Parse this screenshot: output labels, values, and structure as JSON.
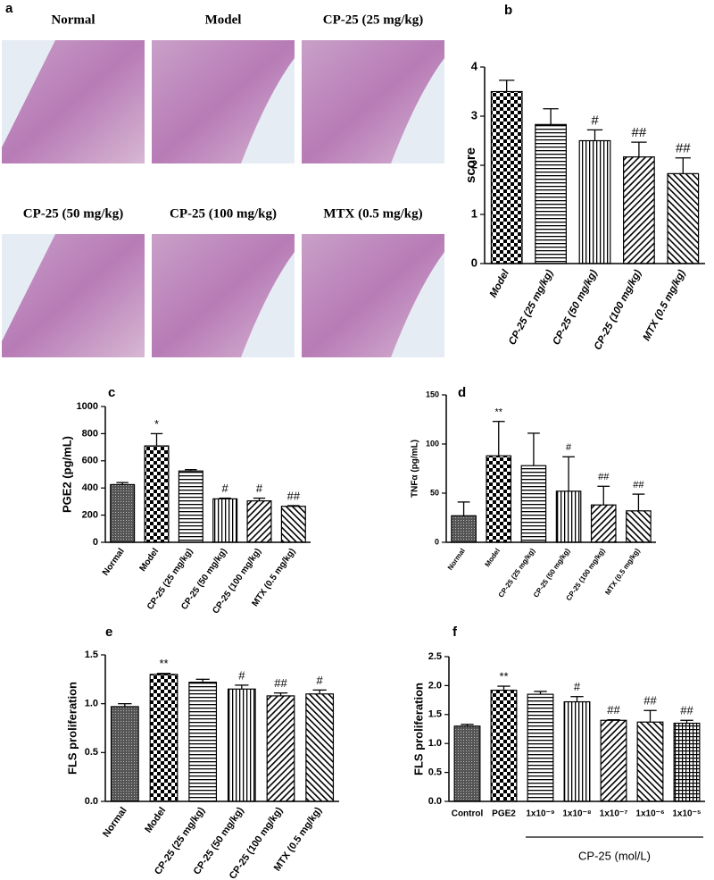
{
  "panel_a": {
    "panel": "a",
    "images": [
      "Normal",
      "Model",
      "CP-25 (25 mg/kg)",
      "CP-25 (50 mg/kg)",
      "CP-25 (100 mg/kg)",
      "MTX (0.5 mg/kg)"
    ]
  },
  "chart_data": [
    {
      "type": "bar",
      "panel": "b",
      "y_label": "score",
      "categories": [
        "Model",
        "CP-25 (25 mg/kg)",
        "CP-25 (50 mg/kg)",
        "CP-25 (100 mg/kg)",
        "MTX (0.5 mg/kg)"
      ],
      "values": [
        3.5,
        2.83,
        2.5,
        2.17,
        1.83
      ],
      "errors": [
        0.23,
        0.32,
        0.22,
        0.3,
        0.32
      ],
      "significance": [
        null,
        null,
        "#",
        "##",
        "##"
      ],
      "ylim": [
        0,
        4
      ],
      "yticks": [
        0,
        1,
        2,
        3,
        4
      ]
    },
    {
      "type": "bar",
      "panel": "c",
      "y_label": "PGE2 (pg/mL)",
      "categories": [
        "Normal",
        "Model",
        "CP-25 (25 mg/kg)",
        "CP-25 (50 mg/kg)",
        "CP-25 (100 mg/kg)",
        "MTX (0.5 mg/kg)"
      ],
      "values": [
        425,
        710,
        525,
        320,
        305,
        265
      ],
      "errors": [
        15,
        90,
        10,
        5,
        20,
        5
      ],
      "significance": [
        null,
        "*",
        null,
        "#",
        "#",
        "##"
      ],
      "ylim": [
        0,
        1000
      ],
      "yticks": [
        0,
        200,
        400,
        600,
        800,
        1000
      ]
    },
    {
      "type": "bar",
      "panel": "d",
      "y_label": "TNFα (pg/mL)",
      "categories": [
        "Normal",
        "Model",
        "CP-25 (25 mg/kg)",
        "CP-25 (50 mg/kg)",
        "CP-25 (100 mg/kg)",
        "MTX (0.5 mg/kg)"
      ],
      "values": [
        27,
        88,
        78,
        52,
        38,
        32
      ],
      "errors": [
        14,
        35,
        33,
        35,
        19,
        17
      ],
      "significance": [
        null,
        "**",
        null,
        "#",
        "##",
        "##"
      ],
      "ylim": [
        0,
        150
      ],
      "yticks": [
        0,
        50,
        100,
        150
      ]
    },
    {
      "type": "bar",
      "panel": "e",
      "y_label": "FLS proliferation",
      "categories": [
        "Normal",
        "Model",
        "CP-25 (25 mg/kg)",
        "CP-25 (50 mg/kg)",
        "CP-25 (100 mg/kg)",
        "MTX (0.5 mg/kg)"
      ],
      "values": [
        0.97,
        1.3,
        1.22,
        1.15,
        1.08,
        1.1
      ],
      "errors": [
        0.03,
        0.01,
        0.03,
        0.04,
        0.03,
        0.04
      ],
      "significance": [
        null,
        "**",
        null,
        "#",
        "##",
        "#"
      ],
      "ylim": [
        0,
        1.5
      ],
      "yticks": [
        {
          "value": 0,
          "label": "0.0"
        },
        0.5,
        {
          "value": 1,
          "label": "1.0"
        },
        1.5
      ]
    },
    {
      "type": "bar",
      "panel": "f",
      "y_label": "FLS proliferation",
      "group_label": "CP-25 (mol/L)",
      "categories": [
        "Control",
        "PGE2",
        "1x10⁻⁹",
        "1x10⁻⁸",
        "1x10⁻⁷",
        "1x10⁻⁶",
        "1x10⁻⁵"
      ],
      "values": [
        1.3,
        1.92,
        1.85,
        1.72,
        1.4,
        1.37,
        1.35
      ],
      "errors": [
        0.03,
        0.07,
        0.05,
        0.09,
        0.01,
        0.2,
        0.05
      ],
      "significance": [
        null,
        "**",
        null,
        "#",
        "##",
        "##",
        "##"
      ],
      "ylim": [
        0,
        2.5
      ],
      "yticks": [
        {
          "value": 0,
          "label": "0.0"
        },
        0.5,
        {
          "value": 1,
          "label": "1.0"
        },
        1.5,
        {
          "value": 2,
          "label": "2.0"
        },
        2.5
      ]
    }
  ]
}
